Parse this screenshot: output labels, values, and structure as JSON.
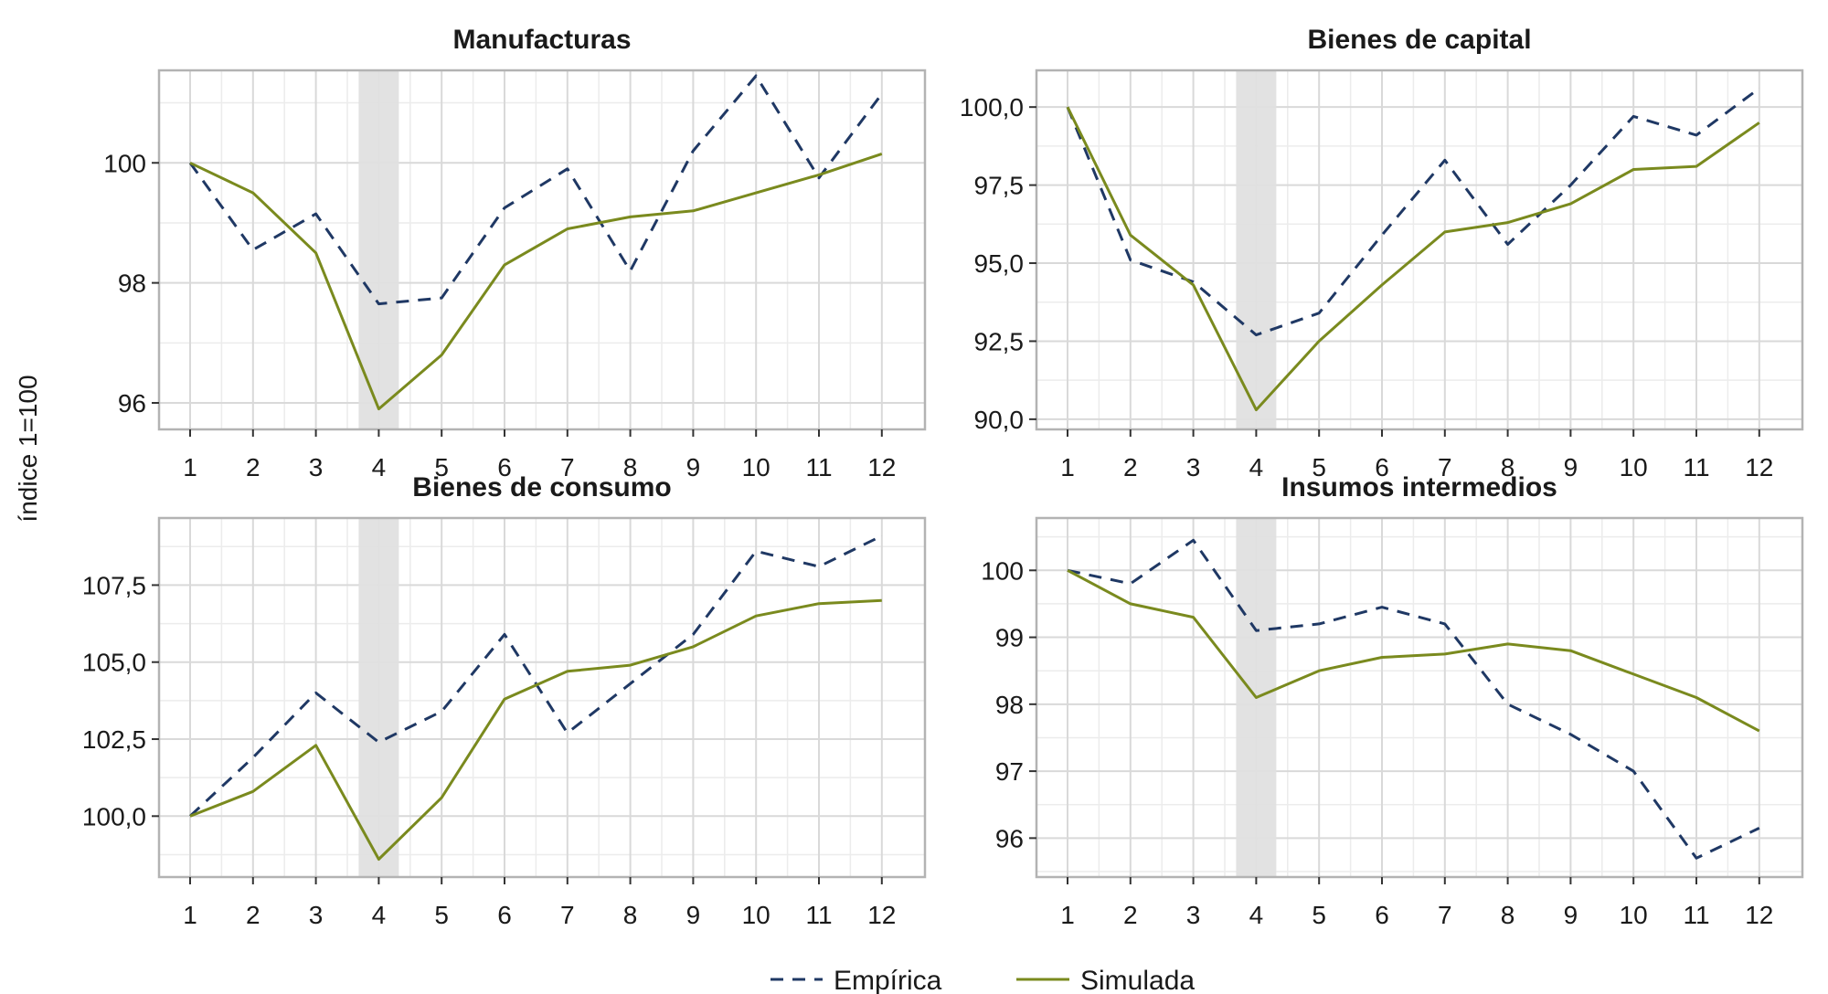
{
  "colors": {
    "empirica": "#1f3864",
    "simulada": "#7a8a1e",
    "shade": "#e0e0e0",
    "grid_major": "#d9d9d9",
    "grid_minor": "#ececec",
    "frame": "#b3b3b3"
  },
  "figure": {
    "ylabel": "índice 1=100",
    "legend": [
      "Empírica",
      "Simulada"
    ]
  },
  "chart_data": [
    {
      "type": "line",
      "title": "Manufacturas",
      "x": [
        1,
        2,
        3,
        4,
        5,
        6,
        7,
        8,
        9,
        10,
        11,
        12
      ],
      "xticks": [
        "1",
        "2",
        "3",
        "4",
        "5",
        "6",
        "7",
        "8",
        "9",
        "10",
        "11",
        "12"
      ],
      "ylim": [
        95.65,
        101.45
      ],
      "yticks": [
        96,
        98,
        100
      ],
      "yticklabels": [
        "96",
        "98",
        "100"
      ],
      "shade_x": 4,
      "series": [
        {
          "name": "Empírica",
          "style": "dashed",
          "values": [
            100.0,
            98.55,
            99.15,
            97.65,
            97.75,
            99.25,
            99.9,
            98.2,
            100.2,
            101.45,
            99.75,
            101.15
          ]
        },
        {
          "name": "Simulada",
          "style": "solid",
          "values": [
            100.0,
            99.5,
            98.5,
            95.9,
            96.8,
            98.3,
            98.9,
            99.1,
            99.2,
            99.5,
            99.8,
            100.15
          ]
        }
      ]
    },
    {
      "type": "line",
      "title": "Bienes de capital",
      "x": [
        1,
        2,
        3,
        4,
        5,
        6,
        7,
        8,
        9,
        10,
        11,
        12
      ],
      "xticks": [
        "1",
        "2",
        "3",
        "4",
        "5",
        "6",
        "7",
        "8",
        "9",
        "10",
        "11",
        "12"
      ],
      "ylim": [
        89.85,
        101.0
      ],
      "yticks": [
        90.0,
        92.5,
        95.0,
        97.5,
        100.0
      ],
      "yticklabels": [
        "90,0",
        "92,5",
        "95,0",
        "97,5",
        "100,0"
      ],
      "shade_x": 4,
      "series": [
        {
          "name": "Empírica",
          "style": "dashed",
          "values": [
            100.0,
            95.1,
            94.4,
            92.7,
            93.4,
            95.9,
            98.3,
            95.6,
            97.5,
            99.7,
            99.1,
            100.6
          ]
        },
        {
          "name": "Simulada",
          "style": "solid",
          "values": [
            100.0,
            95.9,
            94.3,
            90.3,
            92.5,
            94.3,
            96.0,
            96.3,
            96.9,
            98.0,
            98.1,
            99.5
          ]
        }
      ]
    },
    {
      "type": "line",
      "title": "Bienes de consumo",
      "x": [
        1,
        2,
        3,
        4,
        5,
        6,
        7,
        8,
        9,
        10,
        11,
        12
      ],
      "xticks": [
        "1",
        "2",
        "3",
        "4",
        "5",
        "6",
        "7",
        "8",
        "9",
        "10",
        "11",
        "12"
      ],
      "ylim": [
        98.2,
        109.5
      ],
      "yticks": [
        100.0,
        102.5,
        105.0,
        107.5
      ],
      "yticklabels": [
        "100,0",
        "102,5",
        "105,0",
        "107,5"
      ],
      "shade_x": 4,
      "series": [
        {
          "name": "Empírica",
          "style": "dashed",
          "values": [
            100.0,
            101.9,
            104.0,
            102.4,
            103.4,
            105.9,
            102.7,
            104.3,
            105.9,
            108.6,
            108.1,
            109.1
          ]
        },
        {
          "name": "Simulada",
          "style": "solid",
          "values": [
            100.0,
            100.8,
            102.3,
            98.6,
            100.6,
            103.8,
            104.7,
            104.9,
            105.5,
            106.5,
            106.9,
            107.0
          ]
        }
      ]
    },
    {
      "type": "line",
      "title": "Insumos intermedios",
      "x": [
        1,
        2,
        3,
        4,
        5,
        6,
        7,
        8,
        9,
        10,
        11,
        12
      ],
      "xticks": [
        "1",
        "2",
        "3",
        "4",
        "5",
        "6",
        "7",
        "8",
        "9",
        "10",
        "11",
        "12"
      ],
      "ylim": [
        95.5,
        100.7
      ],
      "yticks": [
        96,
        97,
        98,
        99,
        100
      ],
      "yticklabels": [
        "96",
        "97",
        "98",
        "99",
        "100"
      ],
      "shade_x": 4,
      "series": [
        {
          "name": "Empírica",
          "style": "dashed",
          "values": [
            100.0,
            99.8,
            100.45,
            99.1,
            99.2,
            99.45,
            99.2,
            98.0,
            97.55,
            97.0,
            95.7,
            96.15
          ]
        },
        {
          "name": "Simulada",
          "style": "solid",
          "values": [
            100.0,
            99.5,
            99.3,
            98.1,
            98.5,
            98.7,
            98.75,
            98.9,
            98.8,
            98.45,
            98.1,
            97.6
          ]
        }
      ]
    }
  ]
}
